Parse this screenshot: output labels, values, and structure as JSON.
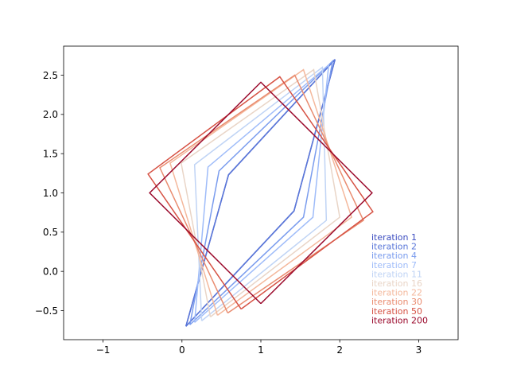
{
  "chart_data": {
    "type": "line",
    "title": "",
    "xlabel": "",
    "ylabel": "",
    "xlim": [
      -1.5,
      3.5
    ],
    "ylim": [
      -0.87,
      2.87
    ],
    "xticks": [
      -1,
      0,
      1,
      2,
      3
    ],
    "yticks": [
      -0.5,
      0.0,
      0.5,
      1.0,
      1.5,
      2.0,
      2.5
    ],
    "xtick_labels": [
      "−1",
      "0",
      "1",
      "2",
      "3"
    ],
    "ytick_labels": [
      "−0.5",
      "0.0",
      "0.5",
      "1.0",
      "1.5",
      "2.0",
      "2.5"
    ],
    "grid": false,
    "legend_position": "lower-right (text-only labels, colored)",
    "series": [
      {
        "name": "iteration 1",
        "color": "#3b4cc0",
        "points": [
          [
            0.05,
            -0.7
          ],
          [
            1.42,
            0.77
          ],
          [
            1.94,
            2.7
          ],
          [
            0.59,
            1.23
          ],
          [
            0.05,
            -0.7
          ]
        ]
      },
      {
        "name": "iteration 2",
        "color": "#5a77d9",
        "points": [
          [
            0.05,
            -0.7
          ],
          [
            1.42,
            0.77
          ],
          [
            1.94,
            2.7
          ],
          [
            0.59,
            1.23
          ],
          [
            0.05,
            -0.7
          ]
        ]
      },
      {
        "name": "iteration 4",
        "color": "#7a9cee",
        "points": [
          [
            0.1,
            -0.68
          ],
          [
            1.54,
            0.69
          ],
          [
            1.91,
            2.68
          ],
          [
            0.47,
            1.28
          ],
          [
            0.1,
            -0.68
          ]
        ]
      },
      {
        "name": "iteration 7",
        "color": "#9fbcf9",
        "points": [
          [
            0.16,
            -0.65
          ],
          [
            1.66,
            0.69
          ],
          [
            1.86,
            2.63
          ],
          [
            0.33,
            1.33
          ],
          [
            0.16,
            -0.65
          ]
        ]
      },
      {
        "name": "iteration 11",
        "color": "#c0d4f5",
        "points": [
          [
            0.25,
            -0.63
          ],
          [
            1.83,
            0.65
          ],
          [
            1.78,
            2.6
          ],
          [
            0.16,
            1.36
          ],
          [
            0.25,
            -0.63
          ]
        ]
      },
      {
        "name": "iteration 16",
        "color": "#e9d5c7",
        "points": [
          [
            0.36,
            -0.58
          ],
          [
            2.0,
            0.69
          ],
          [
            1.67,
            2.57
          ],
          [
            -0.01,
            1.38
          ],
          [
            0.36,
            -0.58
          ]
        ]
      },
      {
        "name": "iteration 22",
        "color": "#f4b89c",
        "points": [
          [
            0.45,
            -0.56
          ],
          [
            2.15,
            0.69
          ],
          [
            1.54,
            2.57
          ],
          [
            -0.15,
            1.38
          ],
          [
            0.45,
            -0.56
          ]
        ]
      },
      {
        "name": "iteration 30",
        "color": "#e98c70",
        "points": [
          [
            0.58,
            -0.53
          ],
          [
            2.3,
            0.65
          ],
          [
            1.43,
            2.5
          ],
          [
            -0.28,
            1.32
          ],
          [
            0.58,
            -0.53
          ]
        ]
      },
      {
        "name": "iteration 50",
        "color": "#d65244",
        "points": [
          [
            0.75,
            -0.48
          ],
          [
            2.42,
            0.76
          ],
          [
            1.24,
            2.48
          ],
          [
            -0.43,
            1.24
          ],
          [
            0.75,
            -0.48
          ]
        ]
      },
      {
        "name": "iteration 200",
        "color": "#9b0a2c",
        "points": [
          [
            1.0,
            -0.41
          ],
          [
            2.41,
            1.0
          ],
          [
            1.0,
            2.41
          ],
          [
            -0.41,
            1.0
          ],
          [
            1.0,
            -0.41
          ]
        ]
      }
    ]
  }
}
